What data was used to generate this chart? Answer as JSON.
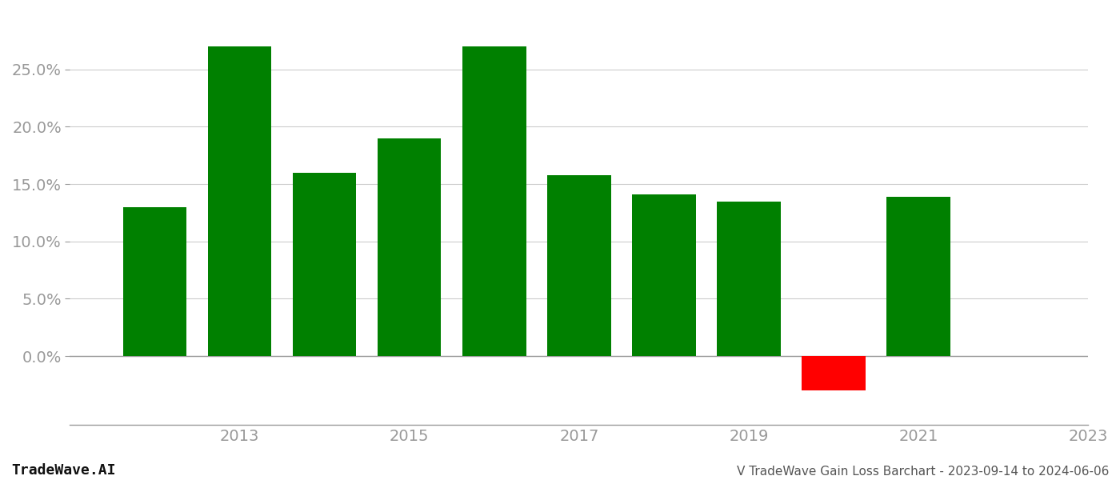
{
  "years": [
    2012,
    2013,
    2014,
    2015,
    2016,
    2017,
    2018,
    2019,
    2020,
    2021
  ],
  "values": [
    0.13,
    0.27,
    0.16,
    0.19,
    0.27,
    0.158,
    0.141,
    0.135,
    -0.03,
    0.139
  ],
  "bar_colors": [
    "#008000",
    "#008000",
    "#008000",
    "#008000",
    "#008000",
    "#008000",
    "#008000",
    "#008000",
    "#ff0000",
    "#008000"
  ],
  "background_color": "#ffffff",
  "grid_color": "#cccccc",
  "axis_color": "#999999",
  "tick_color": "#999999",
  "ylabel_ticks": [
    0.0,
    0.05,
    0.1,
    0.15,
    0.2,
    0.25
  ],
  "ylim": [
    -0.06,
    0.3
  ],
  "xlim": [
    2011.0,
    2023.0
  ],
  "xtick_positions": [
    2013,
    2015,
    2017,
    2019,
    2021,
    2023
  ],
  "xtick_labels": [
    "2013",
    "2015",
    "2017",
    "2019",
    "2021",
    "2023"
  ],
  "footer_left": "TradeWave.AI",
  "footer_right": "V TradeWave Gain Loss Barchart - 2023-09-14 to 2024-06-06",
  "bar_width": 0.75,
  "figsize": [
    14.0,
    6.0
  ],
  "dpi": 100
}
